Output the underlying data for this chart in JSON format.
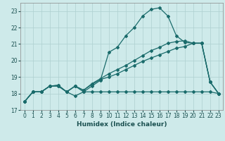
{
  "xlabel": "Humidex (Indice chaleur)",
  "xlim": [
    -0.5,
    23.5
  ],
  "ylim": [
    17,
    23.5
  ],
  "yticks": [
    17,
    18,
    19,
    20,
    21,
    22,
    23
  ],
  "xticks": [
    0,
    1,
    2,
    3,
    4,
    5,
    6,
    7,
    8,
    9,
    10,
    11,
    12,
    13,
    14,
    15,
    16,
    17,
    18,
    19,
    20,
    21,
    22,
    23
  ],
  "background_color": "#ceeaea",
  "grid_color": "#aed0d0",
  "line_color": "#1a6b6b",
  "line1_x": [
    0,
    1,
    2,
    3,
    4,
    5,
    6,
    7,
    8,
    9,
    10,
    11,
    12,
    13,
    14,
    15,
    16,
    17,
    18,
    19,
    20,
    21,
    22,
    23
  ],
  "line1_y": [
    17.5,
    18.1,
    18.1,
    18.45,
    18.45,
    18.1,
    17.85,
    18.1,
    18.1,
    18.1,
    18.1,
    18.1,
    18.1,
    18.1,
    18.1,
    18.1,
    18.1,
    18.1,
    18.1,
    18.1,
    18.1,
    18.1,
    18.1,
    18.0
  ],
  "line2_x": [
    0,
    1,
    2,
    3,
    4,
    5,
    6,
    7,
    8,
    9,
    10,
    11,
    12,
    13,
    14,
    15,
    16,
    17,
    18,
    19,
    20,
    21,
    22,
    23
  ],
  "line2_y": [
    17.5,
    18.1,
    18.1,
    18.45,
    18.45,
    18.1,
    18.45,
    18.1,
    18.45,
    18.8,
    20.5,
    20.8,
    21.5,
    22.0,
    22.7,
    23.1,
    23.2,
    22.7,
    21.5,
    21.1,
    21.05,
    21.05,
    18.7,
    18.0
  ],
  "line3_x": [
    0,
    1,
    2,
    3,
    4,
    5,
    6,
    7,
    8,
    9,
    10,
    11,
    12,
    13,
    14,
    15,
    16,
    17,
    18,
    19,
    20,
    21,
    22,
    23
  ],
  "line3_y": [
    17.5,
    18.1,
    18.1,
    18.45,
    18.5,
    18.1,
    18.45,
    18.2,
    18.6,
    18.9,
    19.2,
    19.45,
    19.7,
    20.0,
    20.3,
    20.6,
    20.8,
    21.05,
    21.15,
    21.2,
    21.05,
    21.05,
    18.7,
    18.0
  ],
  "line4_x": [
    0,
    1,
    2,
    3,
    4,
    5,
    6,
    7,
    8,
    9,
    10,
    11,
    12,
    13,
    14,
    15,
    16,
    17,
    18,
    19,
    20,
    21,
    22,
    23
  ],
  "line4_y": [
    17.5,
    18.1,
    18.1,
    18.45,
    18.5,
    18.1,
    18.45,
    18.2,
    18.55,
    18.85,
    19.0,
    19.2,
    19.45,
    19.7,
    19.95,
    20.15,
    20.35,
    20.55,
    20.75,
    20.85,
    21.05,
    21.05,
    18.7,
    18.0
  ]
}
